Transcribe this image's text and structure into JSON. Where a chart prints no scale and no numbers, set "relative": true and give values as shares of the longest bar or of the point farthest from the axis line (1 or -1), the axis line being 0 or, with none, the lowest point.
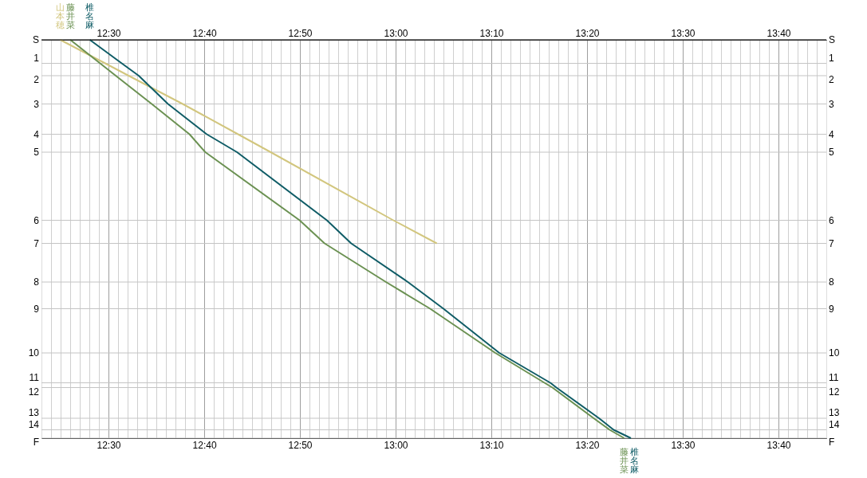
{
  "chart_data": {
    "type": "line",
    "relative": true,
    "xlim": [
      12.3833,
      13.75
    ],
    "x2lim": [
      12.3833,
      13.75
    ],
    "xticks": [
      {
        "value": 12.4,
        "label": null
      },
      {
        "value": 12.4167,
        "label": null
      },
      {
        "value": 12.4333,
        "label": null
      },
      {
        "value": 12.45,
        "label": null
      },
      {
        "value": 12.4667,
        "label": null
      },
      {
        "value": 12.4833,
        "label": null
      },
      {
        "value": 12.5,
        "label": "12:30"
      },
      {
        "value": 12.5167,
        "label": null
      },
      {
        "value": 12.5333,
        "label": null
      },
      {
        "value": 12.55,
        "label": null
      },
      {
        "value": 12.5667,
        "label": null
      },
      {
        "value": 12.5833,
        "label": null
      },
      {
        "value": 12.6,
        "label": null
      },
      {
        "value": 12.6167,
        "label": null
      },
      {
        "value": 12.6333,
        "label": null
      },
      {
        "value": 12.65,
        "label": null
      },
      {
        "value": 12.6667,
        "label": "12:40"
      },
      {
        "value": 12.6833,
        "label": null
      },
      {
        "value": 12.7,
        "label": null
      },
      {
        "value": 12.7167,
        "label": null
      },
      {
        "value": 12.7333,
        "label": null
      },
      {
        "value": 12.75,
        "label": null
      },
      {
        "value": 12.7667,
        "label": null
      },
      {
        "value": 12.7833,
        "label": null
      },
      {
        "value": 12.8,
        "label": null
      },
      {
        "value": 12.8167,
        "label": null
      },
      {
        "value": 12.8333,
        "label": "12:50"
      },
      {
        "value": 12.85,
        "label": null
      },
      {
        "value": 12.8667,
        "label": null
      },
      {
        "value": 12.8833,
        "label": null
      },
      {
        "value": 12.9,
        "label": null
      },
      {
        "value": 12.9167,
        "label": null
      },
      {
        "value": 12.9333,
        "label": null
      },
      {
        "value": 12.95,
        "label": null
      },
      {
        "value": 12.9667,
        "label": null
      },
      {
        "value": 12.9833,
        "label": null
      },
      {
        "value": 13.0,
        "label": "13:00"
      },
      {
        "value": 13.0167,
        "label": null
      },
      {
        "value": 13.0333,
        "label": null
      },
      {
        "value": 13.05,
        "label": null
      },
      {
        "value": 13.0667,
        "label": null
      },
      {
        "value": 13.0833,
        "label": null
      },
      {
        "value": 13.1,
        "label": null
      },
      {
        "value": 13.1167,
        "label": null
      },
      {
        "value": 13.1333,
        "label": null
      },
      {
        "value": 13.15,
        "label": null
      },
      {
        "value": 13.1667,
        "label": "13:10"
      },
      {
        "value": 13.1833,
        "label": null
      },
      {
        "value": 13.2,
        "label": null
      },
      {
        "value": 13.2167,
        "label": null
      },
      {
        "value": 13.2333,
        "label": null
      },
      {
        "value": 13.25,
        "label": null
      },
      {
        "value": 13.2667,
        "label": null
      },
      {
        "value": 13.2833,
        "label": null
      },
      {
        "value": 13.3,
        "label": null
      },
      {
        "value": 13.3167,
        "label": null
      },
      {
        "value": 13.3333,
        "label": "13:20"
      },
      {
        "value": 13.35,
        "label": null
      },
      {
        "value": 13.3667,
        "label": null
      },
      {
        "value": 13.3833,
        "label": null
      },
      {
        "value": 13.4,
        "label": null
      },
      {
        "value": 13.4167,
        "label": null
      },
      {
        "value": 13.4333,
        "label": null
      },
      {
        "value": 13.45,
        "label": null
      },
      {
        "value": 13.4667,
        "label": null
      },
      {
        "value": 13.4833,
        "label": null
      },
      {
        "value": 13.5,
        "label": "13:30"
      },
      {
        "value": 13.5167,
        "label": null
      },
      {
        "value": 13.5333,
        "label": null
      },
      {
        "value": 13.55,
        "label": null
      },
      {
        "value": 13.5667,
        "label": null
      },
      {
        "value": 13.5833,
        "label": null
      },
      {
        "value": 13.6,
        "label": null
      },
      {
        "value": 13.6167,
        "label": null
      },
      {
        "value": 13.6333,
        "label": null
      },
      {
        "value": 13.65,
        "label": null
      },
      {
        "value": 13.6667,
        "label": "13:40"
      },
      {
        "value": 13.6833,
        "label": null
      },
      {
        "value": 13.7,
        "label": null
      },
      {
        "value": 13.7167,
        "label": null
      },
      {
        "value": 13.7333,
        "label": null
      }
    ],
    "x2ticks": [
      {
        "value": 12.5,
        "label": "12:30"
      },
      {
        "value": 12.6667,
        "label": "12:40"
      },
      {
        "value": 12.8333,
        "label": "12:50"
      },
      {
        "value": 13.0,
        "label": "13:00"
      },
      {
        "value": 13.1667,
        "label": "13:10"
      },
      {
        "value": 13.3333,
        "label": "13:20"
      },
      {
        "value": 13.5,
        "label": "13:30"
      },
      {
        "value": 13.6667,
        "label": "13:40"
      }
    ],
    "grid": "x",
    "ref_lines": [
      {
        "axis": "y",
        "value": 1,
        "color": "#c4c4c4"
      },
      {
        "axis": "y",
        "value": 0.941,
        "color": "#c4c4c4"
      },
      {
        "axis": "y",
        "value": 0.91,
        "color": "#c4c4c4"
      },
      {
        "axis": "y",
        "value": 0.839,
        "color": "#c4c4c4"
      },
      {
        "axis": "y",
        "value": 0.763,
        "color": "#c4c4c4"
      },
      {
        "axis": "y",
        "value": 0.718,
        "color": "#c4c4c4"
      },
      {
        "axis": "y",
        "value": 0.547,
        "color": "#c4c4c4"
      },
      {
        "axis": "y",
        "value": 0.489,
        "color": "#c4c4c4"
      },
      {
        "axis": "y",
        "value": 0.392,
        "color": "#c4c4c4"
      },
      {
        "axis": "y",
        "value": 0.325,
        "color": "#c4c4c4"
      },
      {
        "axis": "y",
        "value": 0.214,
        "color": "#c4c4c4"
      },
      {
        "axis": "y",
        "value": 0.139,
        "color": "#c4c4c4"
      },
      {
        "axis": "y",
        "value": 0.127,
        "color": "#c4c4c4"
      },
      {
        "axis": "y",
        "value": 0.05,
        "color": "#c4c4c4"
      },
      {
        "axis": "y",
        "value": 0.021,
        "color": "#c4c4c4"
      },
      {
        "axis": "y",
        "value": 0,
        "color": "#c4c4c4"
      }
    ],
    "annotations": [
      "S",
      "1",
      "2",
      "3",
      "4",
      "5",
      "6",
      "7",
      "8",
      "9",
      "10",
      "11",
      "12",
      "13",
      "14",
      "F"
    ],
    "series": [
      {
        "name": "山本穂",
        "color": "#d2c67e",
        "x": [
          12.416,
          12.4943,
          12.535,
          12.6292,
          12.7256,
          12.7824,
          12.996,
          13.0717
        ],
        "values": [
          1,
          0.941,
          0.91,
          0.839,
          0.763,
          0.718,
          0.547,
          0.489
        ]
      },
      {
        "name": "藤井菜",
        "color": "#6b9152",
        "x": [
          12.4335,
          12.4854,
          12.5126,
          12.5753,
          12.6411,
          12.6686,
          12.8328,
          12.8763,
          12.9832,
          13.0601,
          13.1736,
          13.2592,
          13.2731,
          13.3449,
          13.3726,
          13.3981
        ],
        "values": [
          1,
          0.941,
          0.91,
          0.839,
          0.763,
          0.718,
          0.547,
          0.489,
          0.392,
          0.325,
          0.214,
          0.139,
          0.127,
          0.05,
          0.021,
          0
        ]
      },
      {
        "name": "椎名麻",
        "color": "#0f5c66",
        "x": [
          12.4675,
          12.5231,
          12.5526,
          12.6036,
          12.6711,
          12.7238,
          12.8803,
          12.9226,
          13.0213,
          13.0833,
          13.1806,
          13.2694,
          13.28,
          13.3542,
          13.3796,
          13.4097
        ],
        "values": [
          1,
          0.941,
          0.91,
          0.839,
          0.763,
          0.718,
          0.547,
          0.489,
          0.392,
          0.325,
          0.214,
          0.139,
          0.127,
          0.05,
          0.021,
          0
        ]
      }
    ]
  }
}
